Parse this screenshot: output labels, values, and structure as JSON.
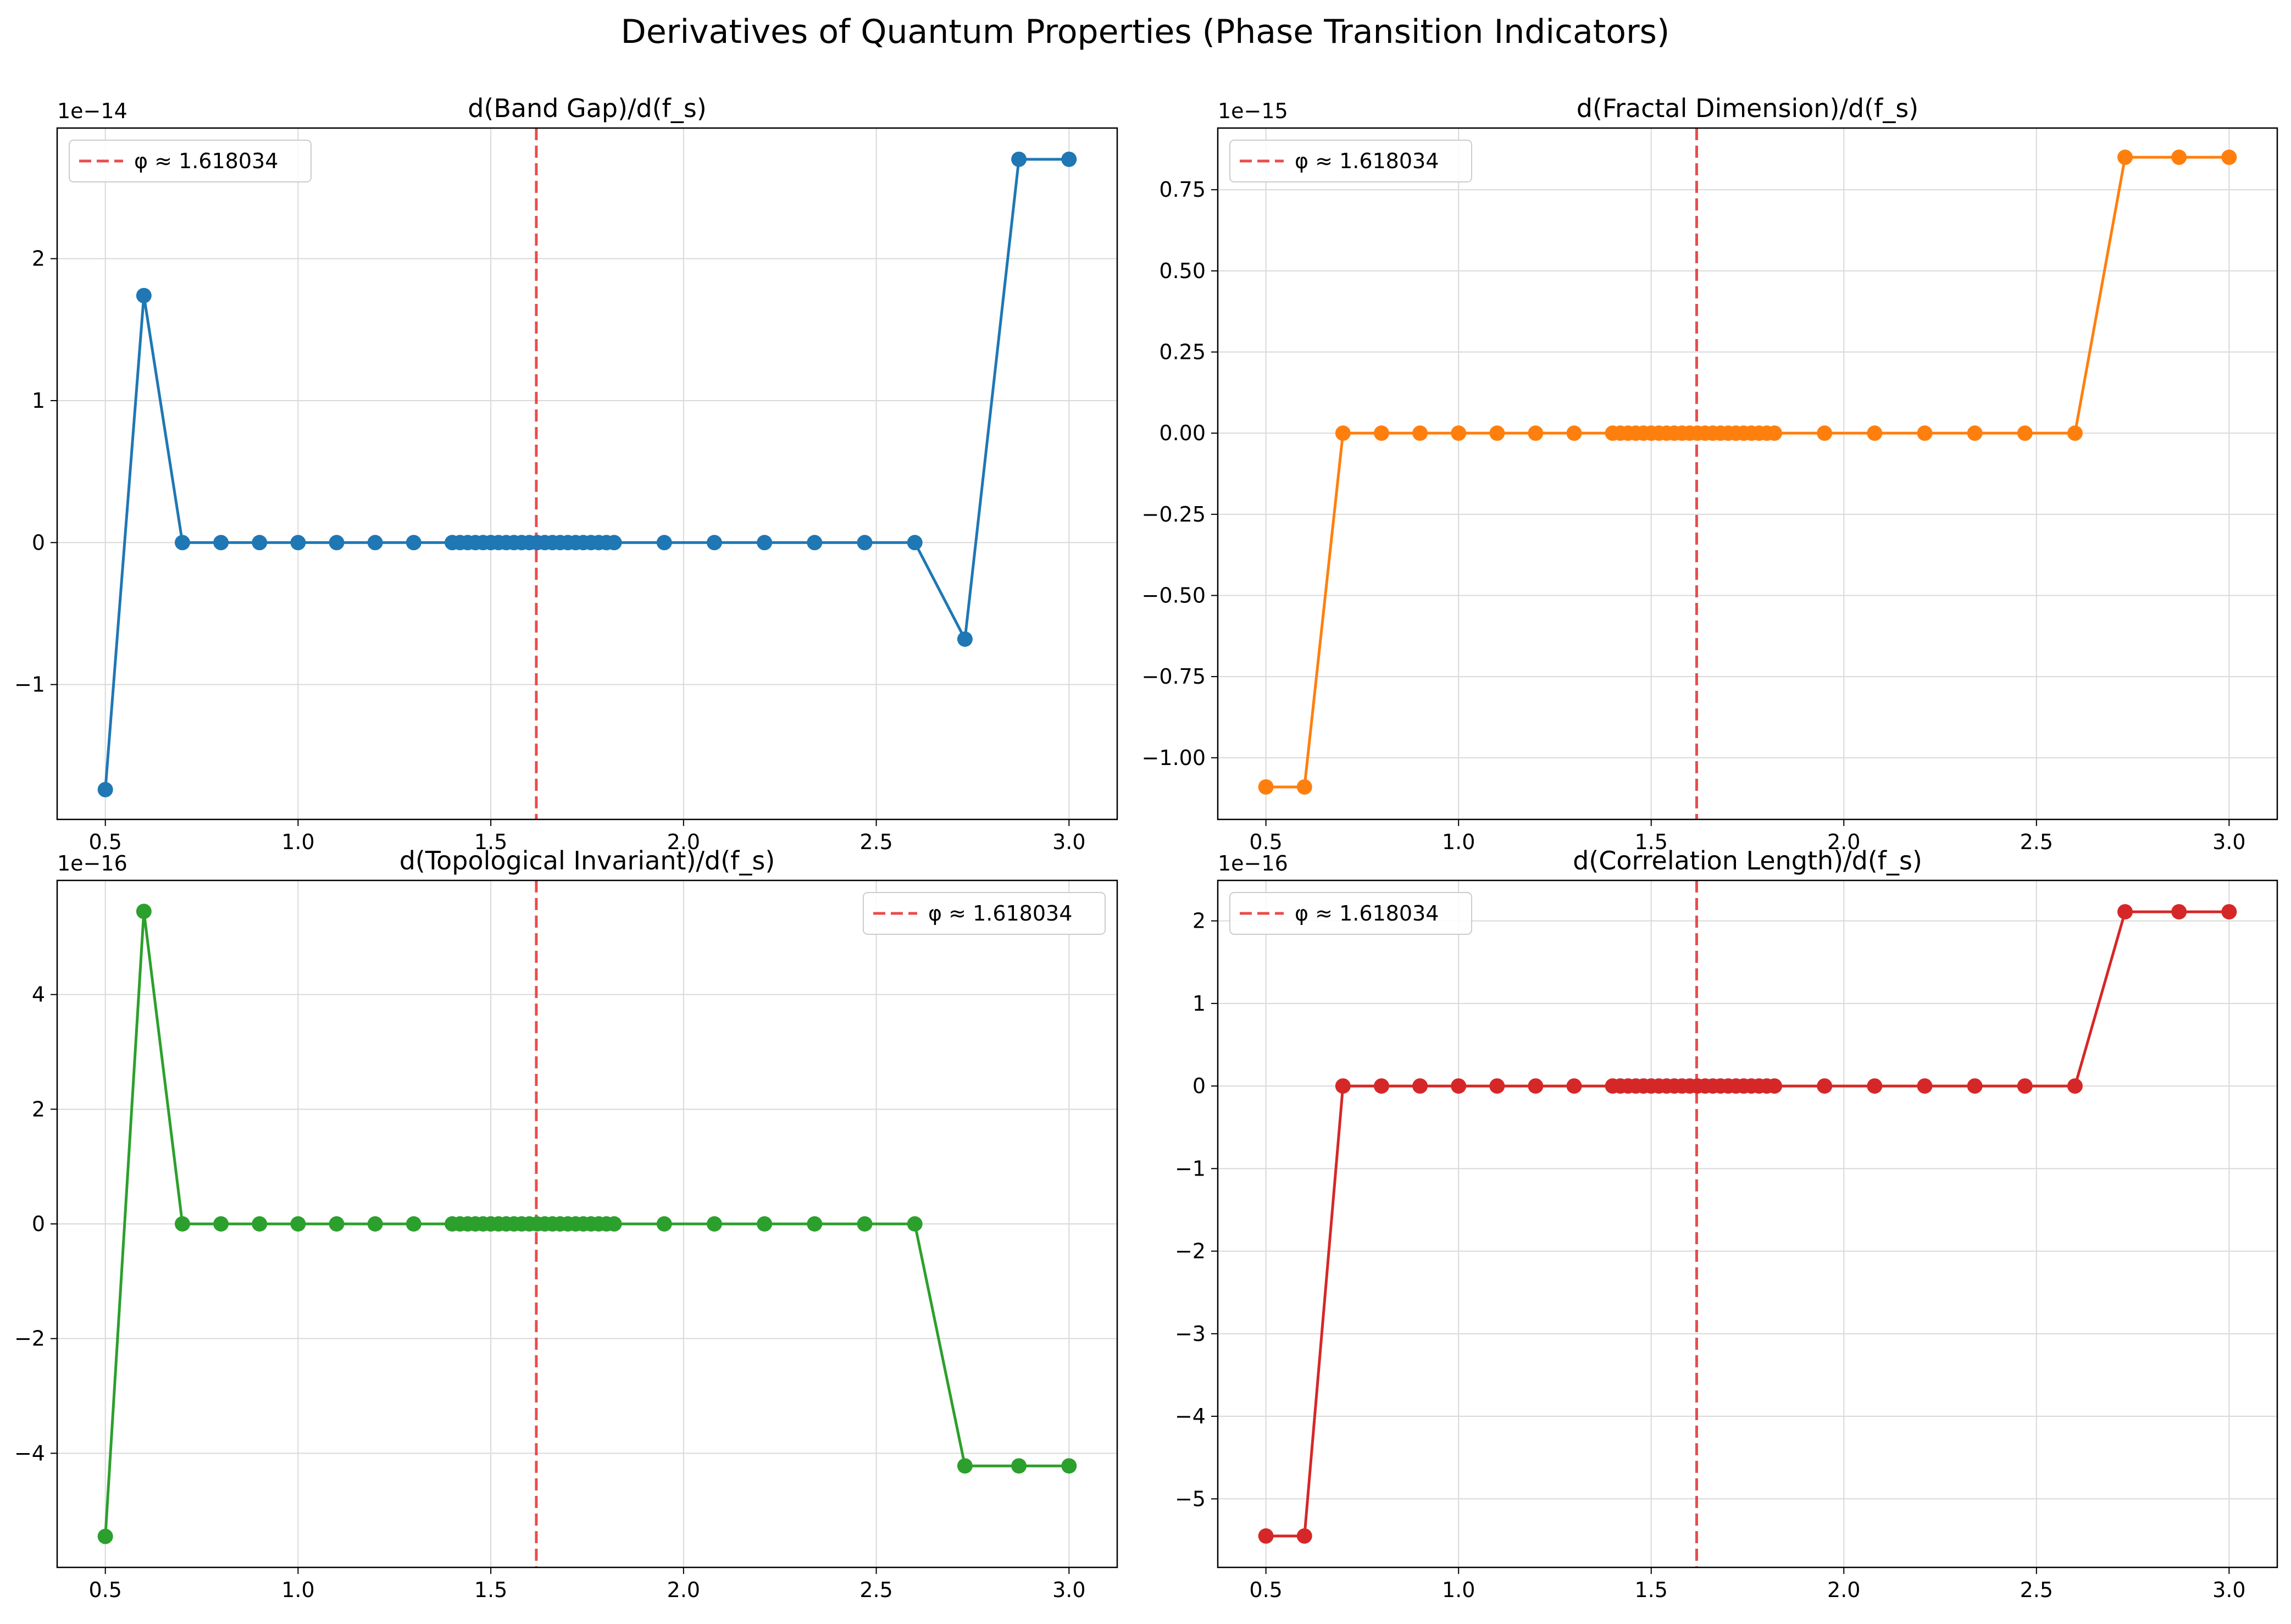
{
  "figure_title": "Derivatives of Quantum Properties (Phase Transition Indicators)",
  "chart_data": [
    {
      "type": "line",
      "title": "d(Band Gap)/d(f_s)",
      "offset_label": "1e−14",
      "color": "#1f77b4",
      "x": [
        0.5,
        0.6,
        0.7,
        0.8,
        0.9,
        1.0,
        1.1,
        1.2,
        1.3,
        1.4,
        1.42,
        1.44,
        1.46,
        1.48,
        1.5,
        1.52,
        1.54,
        1.56,
        1.58,
        1.6,
        1.62,
        1.64,
        1.66,
        1.68,
        1.7,
        1.72,
        1.74,
        1.76,
        1.78,
        1.8,
        1.82,
        1.95,
        2.08,
        2.21,
        2.34,
        2.47,
        2.6,
        2.73,
        2.87,
        3.0
      ],
      "y": [
        -1.74,
        1.74,
        0,
        0,
        0,
        0,
        0,
        0,
        0,
        0,
        0,
        0,
        0,
        0,
        0,
        0,
        0,
        0,
        0,
        0,
        0,
        0,
        0,
        0,
        0,
        0,
        0,
        0,
        0,
        0,
        0,
        0,
        0,
        0,
        0,
        0,
        0,
        -0.68,
        2.7,
        2.7
      ],
      "xlim": [
        0.375,
        3.125
      ],
      "ylim": [
        -1.95,
        2.92
      ],
      "xticks": [
        "0.5",
        "1.0",
        "1.5",
        "2.0",
        "2.5",
        "3.0"
      ],
      "yticks": [
        -1,
        0,
        1,
        2
      ],
      "ytick_labels": [
        "−1",
        "0",
        "1",
        "2"
      ],
      "vline": {
        "x": 1.618034,
        "label": "φ ≈ 1.618034",
        "color": "#e8393a"
      },
      "legend_position": "upper left",
      "grid": true
    },
    {
      "type": "line",
      "title": "d(Fractal Dimension)/d(f_s)",
      "offset_label": "1e−15",
      "color": "#ff7f0e",
      "x": [
        0.5,
        0.6,
        0.7,
        0.8,
        0.9,
        1.0,
        1.1,
        1.2,
        1.3,
        1.4,
        1.42,
        1.44,
        1.46,
        1.48,
        1.5,
        1.52,
        1.54,
        1.56,
        1.58,
        1.6,
        1.62,
        1.64,
        1.66,
        1.68,
        1.7,
        1.72,
        1.74,
        1.76,
        1.78,
        1.8,
        1.82,
        1.95,
        2.08,
        2.21,
        2.34,
        2.47,
        2.6,
        2.73,
        2.87,
        3.0
      ],
      "y": [
        -1.09,
        -1.09,
        0,
        0,
        0,
        0,
        0,
        0,
        0,
        0,
        0,
        0,
        0,
        0,
        0,
        0,
        0,
        0,
        0,
        0,
        0,
        0,
        0,
        0,
        0,
        0,
        0,
        0,
        0,
        0,
        0,
        0,
        0,
        0,
        0,
        0,
        0,
        0.85,
        0.85,
        0.85
      ],
      "xlim": [
        0.375,
        3.125
      ],
      "ylim": [
        -1.19,
        0.94
      ],
      "xticks": [
        "0.5",
        "1.0",
        "1.5",
        "2.0",
        "2.5",
        "3.0"
      ],
      "yticks": [
        -1.0,
        -0.75,
        -0.5,
        -0.25,
        0,
        0.25,
        0.5,
        0.75
      ],
      "ytick_labels": [
        "−1.00",
        "−0.75",
        "−0.50",
        "−0.25",
        "0.00",
        "0.25",
        "0.50",
        "0.75"
      ],
      "vline": {
        "x": 1.618034,
        "label": "φ ≈ 1.618034",
        "color": "#e8393a"
      },
      "legend_position": "upper left",
      "grid": true
    },
    {
      "type": "line",
      "title": "d(Topological Invariant)/d(f_s)",
      "offset_label": "1e−16",
      "color": "#2ca02c",
      "x": [
        0.5,
        0.6,
        0.7,
        0.8,
        0.9,
        1.0,
        1.1,
        1.2,
        1.3,
        1.4,
        1.42,
        1.44,
        1.46,
        1.48,
        1.5,
        1.52,
        1.54,
        1.56,
        1.58,
        1.6,
        1.62,
        1.64,
        1.66,
        1.68,
        1.7,
        1.72,
        1.74,
        1.76,
        1.78,
        1.8,
        1.82,
        1.95,
        2.08,
        2.21,
        2.34,
        2.47,
        2.6,
        2.73,
        2.87,
        3.0
      ],
      "y": [
        -5.45,
        5.45,
        0,
        0,
        0,
        0,
        0,
        0,
        0,
        0,
        0,
        0,
        0,
        0,
        0,
        0,
        0,
        0,
        0,
        0,
        0,
        0,
        0,
        0,
        0,
        0,
        0,
        0,
        0,
        0,
        0,
        0,
        0,
        0,
        0,
        0,
        0,
        -4.22,
        -4.22,
        -4.22
      ],
      "xlim": [
        0.375,
        3.125
      ],
      "ylim": [
        -5.99,
        5.99
      ],
      "xticks": [
        "0.5",
        "1.0",
        "1.5",
        "2.0",
        "2.5",
        "3.0"
      ],
      "yticks": [
        -4,
        -2,
        0,
        2,
        4
      ],
      "ytick_labels": [
        "−4",
        "−2",
        "0",
        "2",
        "4"
      ],
      "vline": {
        "x": 1.618034,
        "label": "φ ≈ 1.618034",
        "color": "#e8393a"
      },
      "legend_position": "upper right",
      "grid": true
    },
    {
      "type": "line",
      "title": "d(Correlation Length)/d(f_s)",
      "offset_label": "1e−16",
      "color": "#d62728",
      "x": [
        0.5,
        0.6,
        0.7,
        0.8,
        0.9,
        1.0,
        1.1,
        1.2,
        1.3,
        1.4,
        1.42,
        1.44,
        1.46,
        1.48,
        1.5,
        1.52,
        1.54,
        1.56,
        1.58,
        1.6,
        1.62,
        1.64,
        1.66,
        1.68,
        1.7,
        1.72,
        1.74,
        1.76,
        1.78,
        1.8,
        1.82,
        1.95,
        2.08,
        2.21,
        2.34,
        2.47,
        2.6,
        2.73,
        2.87,
        3.0
      ],
      "y": [
        -5.45,
        -5.45,
        0,
        0,
        0,
        0,
        0,
        0,
        0,
        0,
        0,
        0,
        0,
        0,
        0,
        0,
        0,
        0,
        0,
        0,
        0,
        0,
        0,
        0,
        0,
        0,
        0,
        0,
        0,
        0,
        0,
        0,
        0,
        0,
        0,
        0,
        0,
        2.11,
        2.11,
        2.11
      ],
      "xlim": [
        0.375,
        3.125
      ],
      "ylim": [
        -5.83,
        2.49
      ],
      "xticks": [
        "0.5",
        "1.0",
        "1.5",
        "2.0",
        "2.5",
        "3.0"
      ],
      "yticks": [
        -5,
        -4,
        -3,
        -2,
        -1,
        0,
        1,
        2
      ],
      "ytick_labels": [
        "−5",
        "−4",
        "−3",
        "−2",
        "−1",
        "0",
        "1",
        "2"
      ],
      "vline": {
        "x": 1.618034,
        "label": "φ ≈ 1.618034",
        "color": "#e8393a"
      },
      "legend_position": "upper left",
      "grid": true
    }
  ]
}
